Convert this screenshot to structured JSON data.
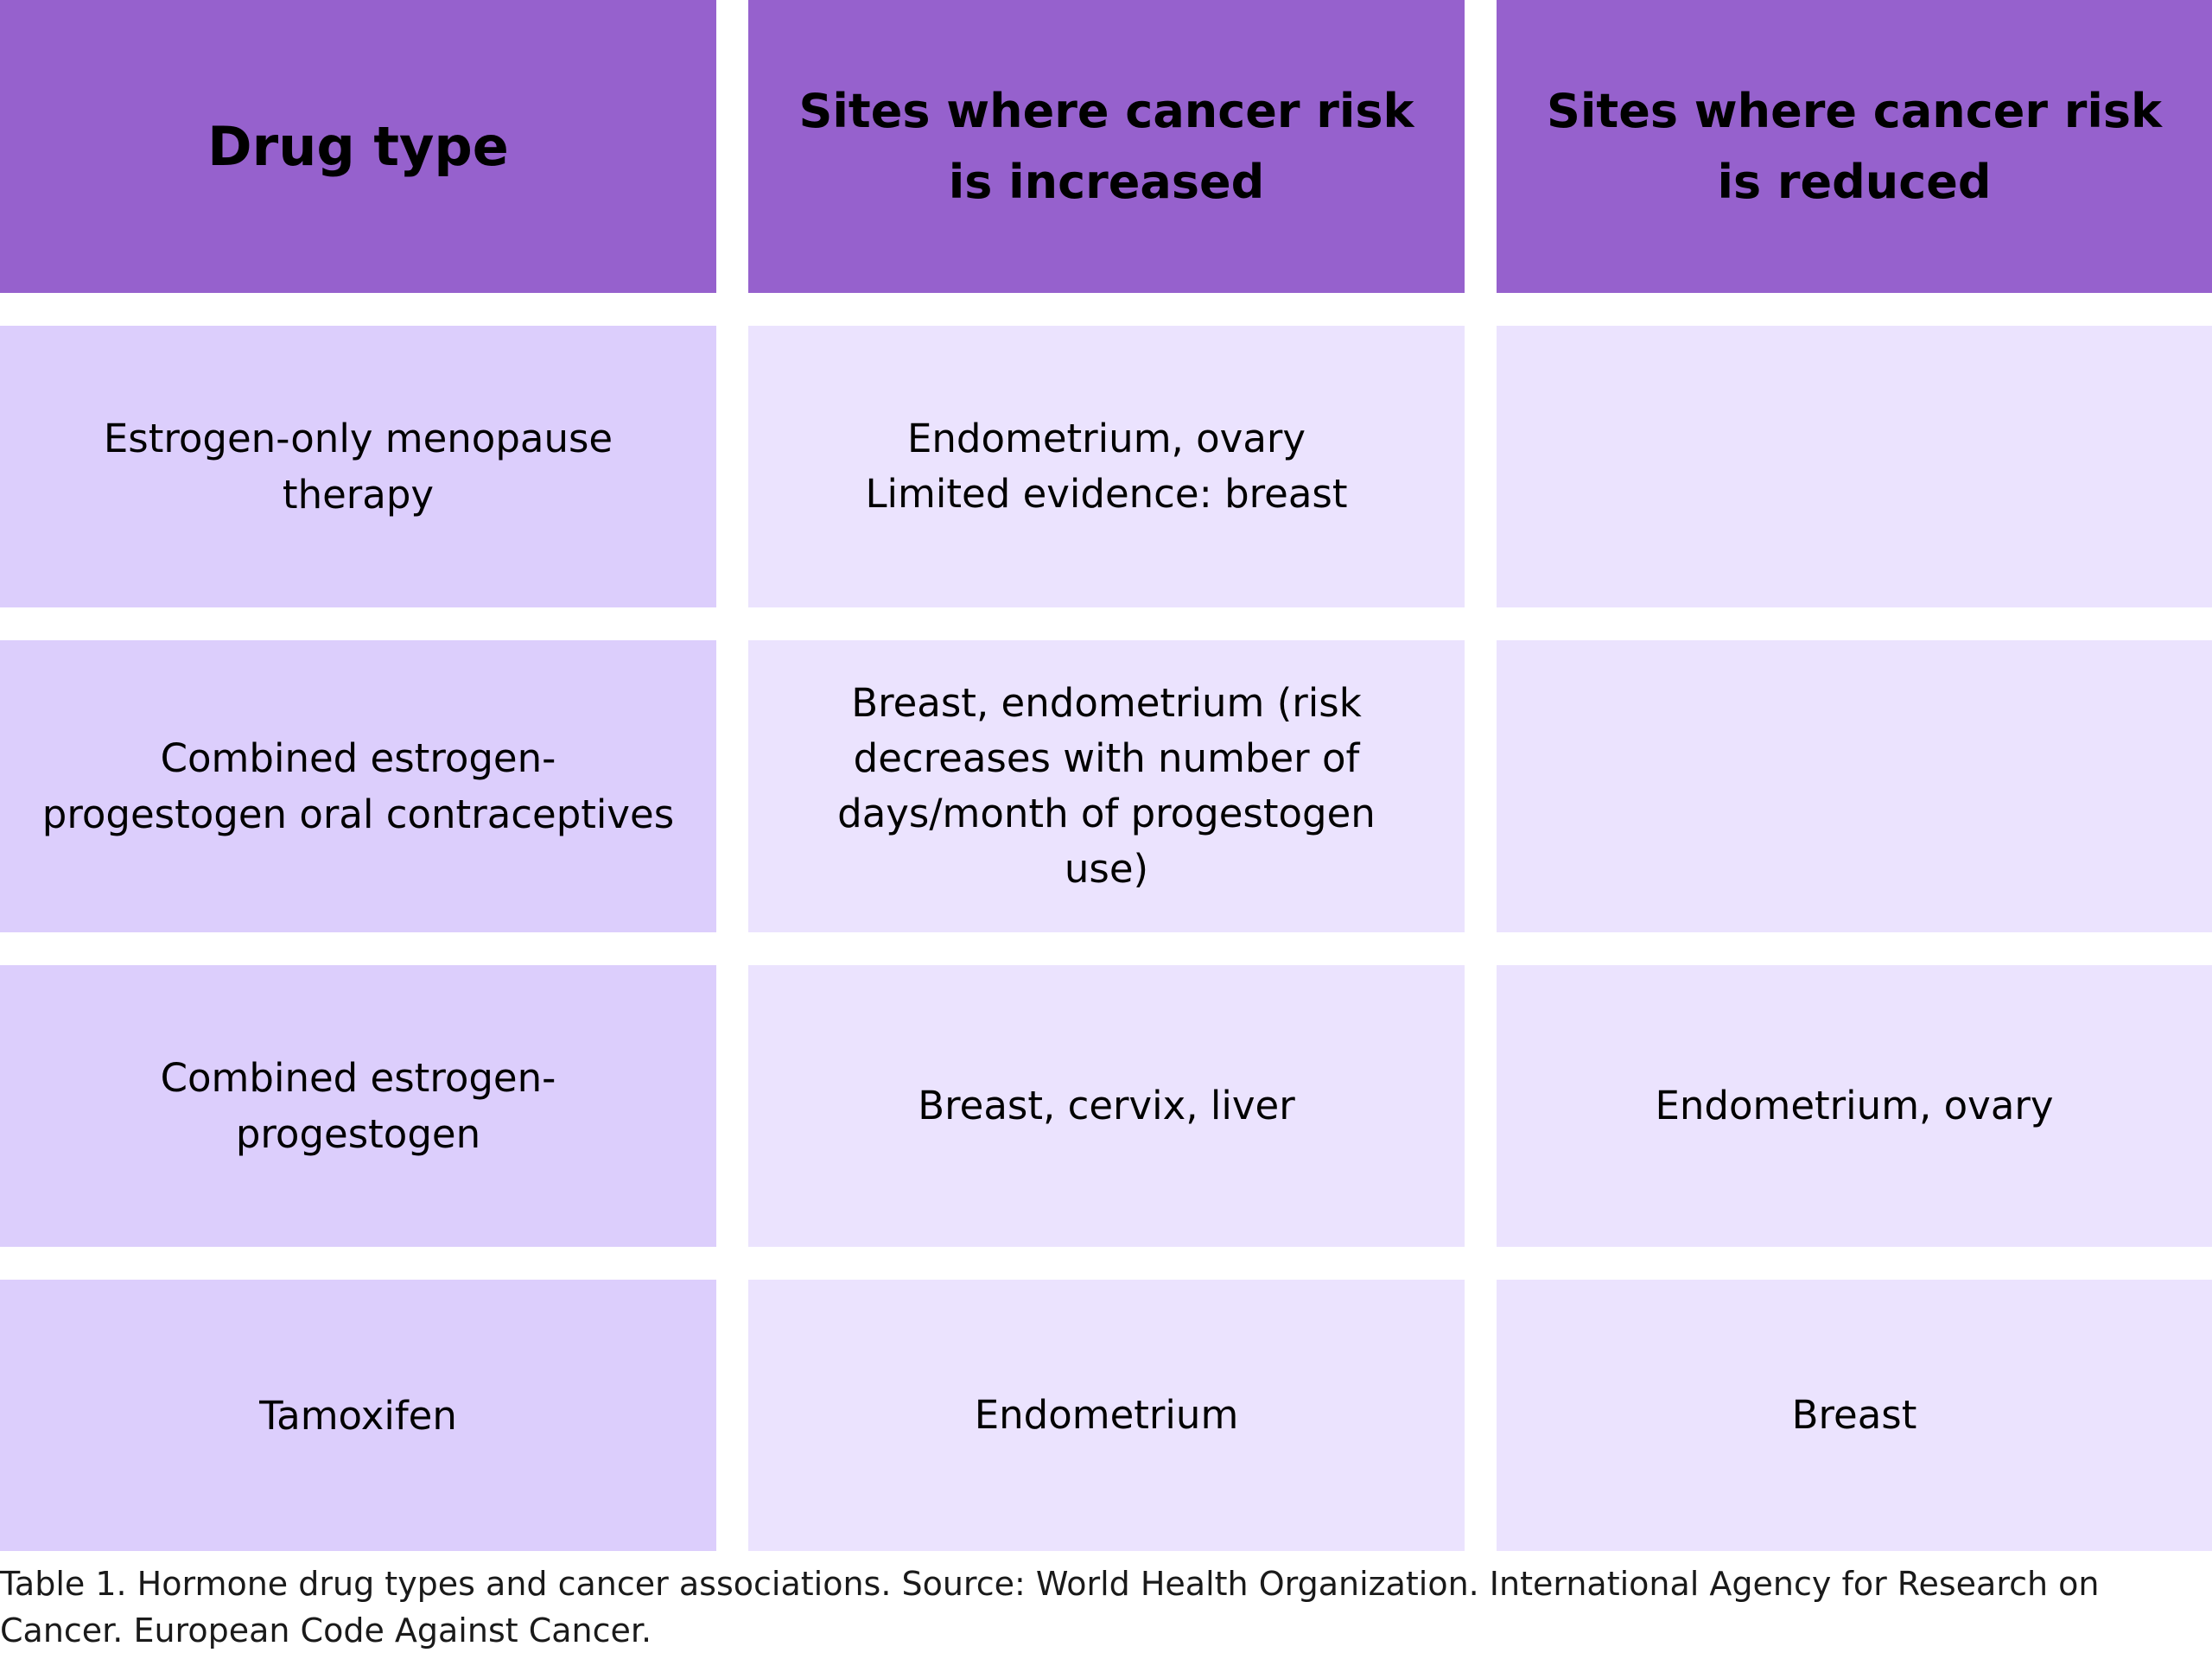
{
  "table": {
    "headers": [
      "Drug type",
      "Sites where cancer risk\nis increased",
      "Sites where cancer risk\nis reduced"
    ],
    "rows": [
      {
        "drug_type": "Estrogen-only menopause\ntherapy",
        "increased": "Endometrium, ovary\nLimited evidence: breast",
        "reduced": ""
      },
      {
        "drug_type": "Combined estrogen-\nprogestogen oral contraceptives",
        "increased": "Breast, endometrium (risk\ndecreases with number of\ndays/month of progestogen\nuse)",
        "reduced": ""
      },
      {
        "drug_type": "Combined estrogen-\nprogestogen",
        "increased": "Breast, cervix, liver",
        "reduced": "Endometrium, ovary"
      },
      {
        "drug_type": "Tamoxifen",
        "increased": "Endometrium",
        "reduced": "Breast"
      }
    ]
  },
  "caption": "Table 1. Hormone drug types and cancer associations. Source: World Health Organization. International Agency for Research on Cancer. European Code Against Cancer.",
  "colors": {
    "header_bg": "#9661cd",
    "first_col_bg": "#dccefc",
    "other_cols_bg": "#ebe3fe"
  }
}
